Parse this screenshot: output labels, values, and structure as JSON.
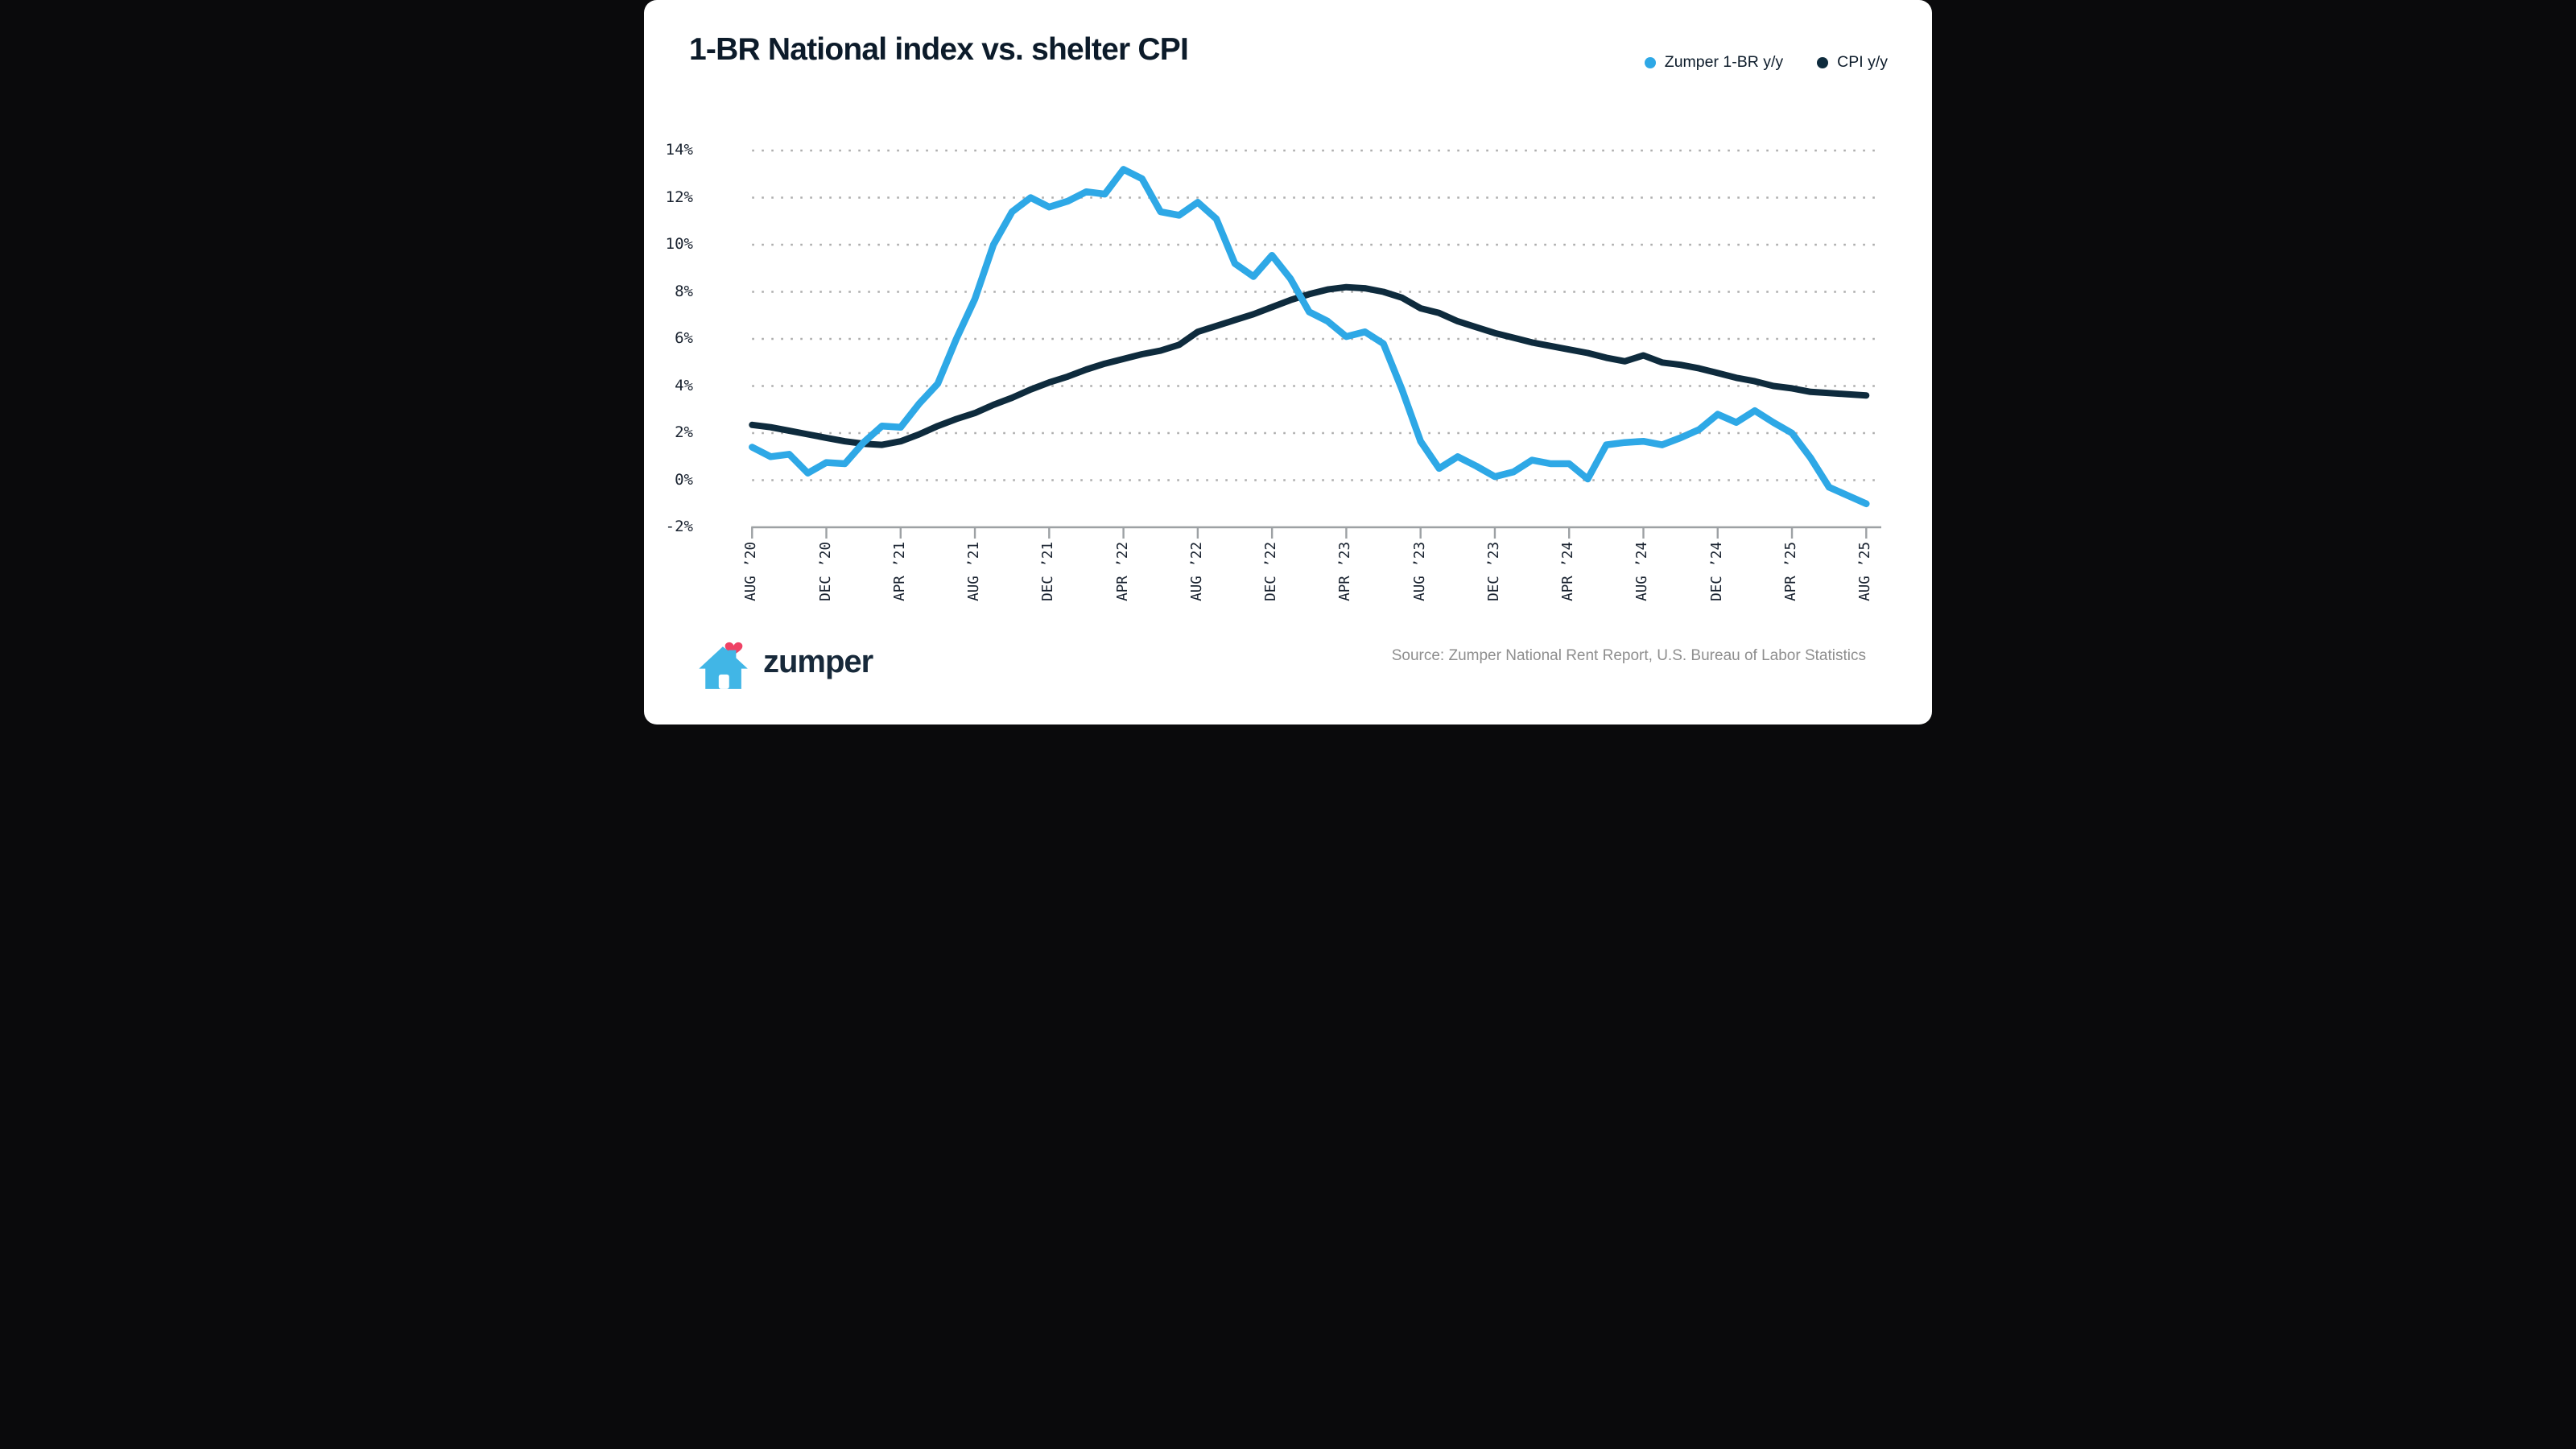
{
  "title": "1-BR National index vs. shelter CPI",
  "legend": [
    {
      "label": "Zumper 1-BR y/y",
      "color": "#2ea8e6"
    },
    {
      "label": "CPI y/y",
      "color": "#0e2b3d"
    }
  ],
  "footer": {
    "brand": "zumper",
    "source": "Source: Zumper National Rent Report, U.S. Bureau of Labor Statistics"
  },
  "icons": {
    "house_color": "#41b6e6",
    "heart_color": "#ef4265"
  },
  "chart_data": {
    "type": "line",
    "title": "1-BR National index vs. shelter CPI",
    "x_start": "AUG '20",
    "x_end": "AUG '25",
    "x_interval": "monthly",
    "x_tick_labels": [
      "AUG ’20",
      "DEC ’20",
      "APR ’21",
      "AUG ’21",
      "DEC ’21",
      "APR ’22",
      "AUG ’22",
      "DEC ’22",
      "APR ’23",
      "AUG ’23",
      "DEC ’23",
      "APR ’24",
      "AUG ’24",
      "DEC ’24",
      "APR ’25",
      "AUG ’25"
    ],
    "y_tick_labels": [
      "14%",
      "12%",
      "10%",
      "8%",
      "6%",
      "4%",
      "2%",
      "0%",
      "-2%"
    ],
    "y_ticks": [
      14,
      12,
      10,
      8,
      6,
      4,
      2,
      0,
      -2
    ],
    "ylim": [
      -2,
      14
    ],
    "unit": "%",
    "grid": "dotted horizontal every 2%",
    "legend_position": "top-right",
    "series": [
      {
        "name": "Zumper 1-BR y/y",
        "color": "#2ea8e6",
        "values": [
          1.4,
          1.0,
          1.1,
          0.3,
          0.75,
          0.7,
          1.6,
          2.3,
          2.25,
          3.25,
          4.1,
          6.0,
          7.7,
          10.0,
          11.4,
          12.0,
          11.6,
          11.85,
          12.25,
          12.15,
          13.2,
          12.8,
          11.4,
          11.25,
          11.8,
          11.1,
          9.2,
          8.65,
          9.55,
          8.55,
          7.15,
          6.75,
          6.1,
          6.3,
          5.8,
          3.85,
          1.65,
          0.5,
          1.0,
          0.6,
          0.15,
          0.35,
          0.85,
          0.7,
          0.7,
          0.05,
          1.5,
          1.6,
          1.65,
          1.5,
          1.8,
          2.15,
          2.8,
          2.45,
          2.95,
          2.45,
          2.0,
          0.95,
          -0.3,
          -0.65,
          -1.0
        ]
      },
      {
        "name": "CPI y/y",
        "color": "#0e2b3d",
        "values": [
          2.35,
          2.25,
          2.1,
          1.95,
          1.8,
          1.65,
          1.55,
          1.5,
          1.65,
          1.95,
          2.3,
          2.6,
          2.85,
          3.2,
          3.5,
          3.85,
          4.15,
          4.4,
          4.7,
          4.95,
          5.15,
          5.35,
          5.5,
          5.75,
          6.3,
          6.55,
          6.8,
          7.05,
          7.35,
          7.65,
          7.9,
          8.1,
          8.2,
          8.15,
          8.0,
          7.75,
          7.3,
          7.1,
          6.75,
          6.5,
          6.25,
          6.05,
          5.85,
          5.7,
          5.55,
          5.4,
          5.2,
          5.05,
          5.3,
          5.0,
          4.9,
          4.75,
          4.55,
          4.35,
          4.2,
          4.0,
          3.9,
          3.75,
          3.7,
          3.65,
          3.6
        ]
      }
    ]
  }
}
